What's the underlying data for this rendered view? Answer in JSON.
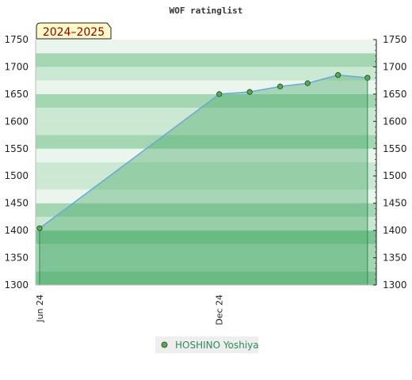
{
  "chart_data": {
    "type": "area",
    "title": "WOF ratinglist",
    "season_label": "2024–2025",
    "ylim": [
      1300,
      1750
    ],
    "yticks": [
      1300,
      1350,
      1400,
      1450,
      1500,
      1550,
      1600,
      1650,
      1700,
      1750
    ],
    "x_tick_labels": [
      "Jun 24",
      "Dec 24"
    ],
    "x_tick_dates": [
      "2024-06-01",
      "2024-12-01"
    ],
    "xlim": [
      "2024-05-28",
      "2025-05-10"
    ],
    "grid": true,
    "legend_position": "bottom",
    "colors": {
      "band_dark": "#7cc493",
      "band_mid": "#a3d6b1",
      "band_light": "#cbe8d3",
      "band_pale": "#eaf6ed",
      "area_fill": "#55b072",
      "line": "#6aa8d8",
      "marker": "#4caf50",
      "legend_text": "#2e8b57",
      "badge_bg": "#fff8c8",
      "badge_text": "#8b0000"
    },
    "series": [
      {
        "name": "HOSHINO Yoshiya",
        "x": [
          "2024-06-01",
          "2024-12-01",
          "2025-01-01",
          "2025-02-01",
          "2025-03-01",
          "2025-04-01",
          "2025-05-01"
        ],
        "values": [
          1404,
          1650,
          1654,
          1664,
          1670,
          1685,
          1680
        ]
      }
    ]
  }
}
